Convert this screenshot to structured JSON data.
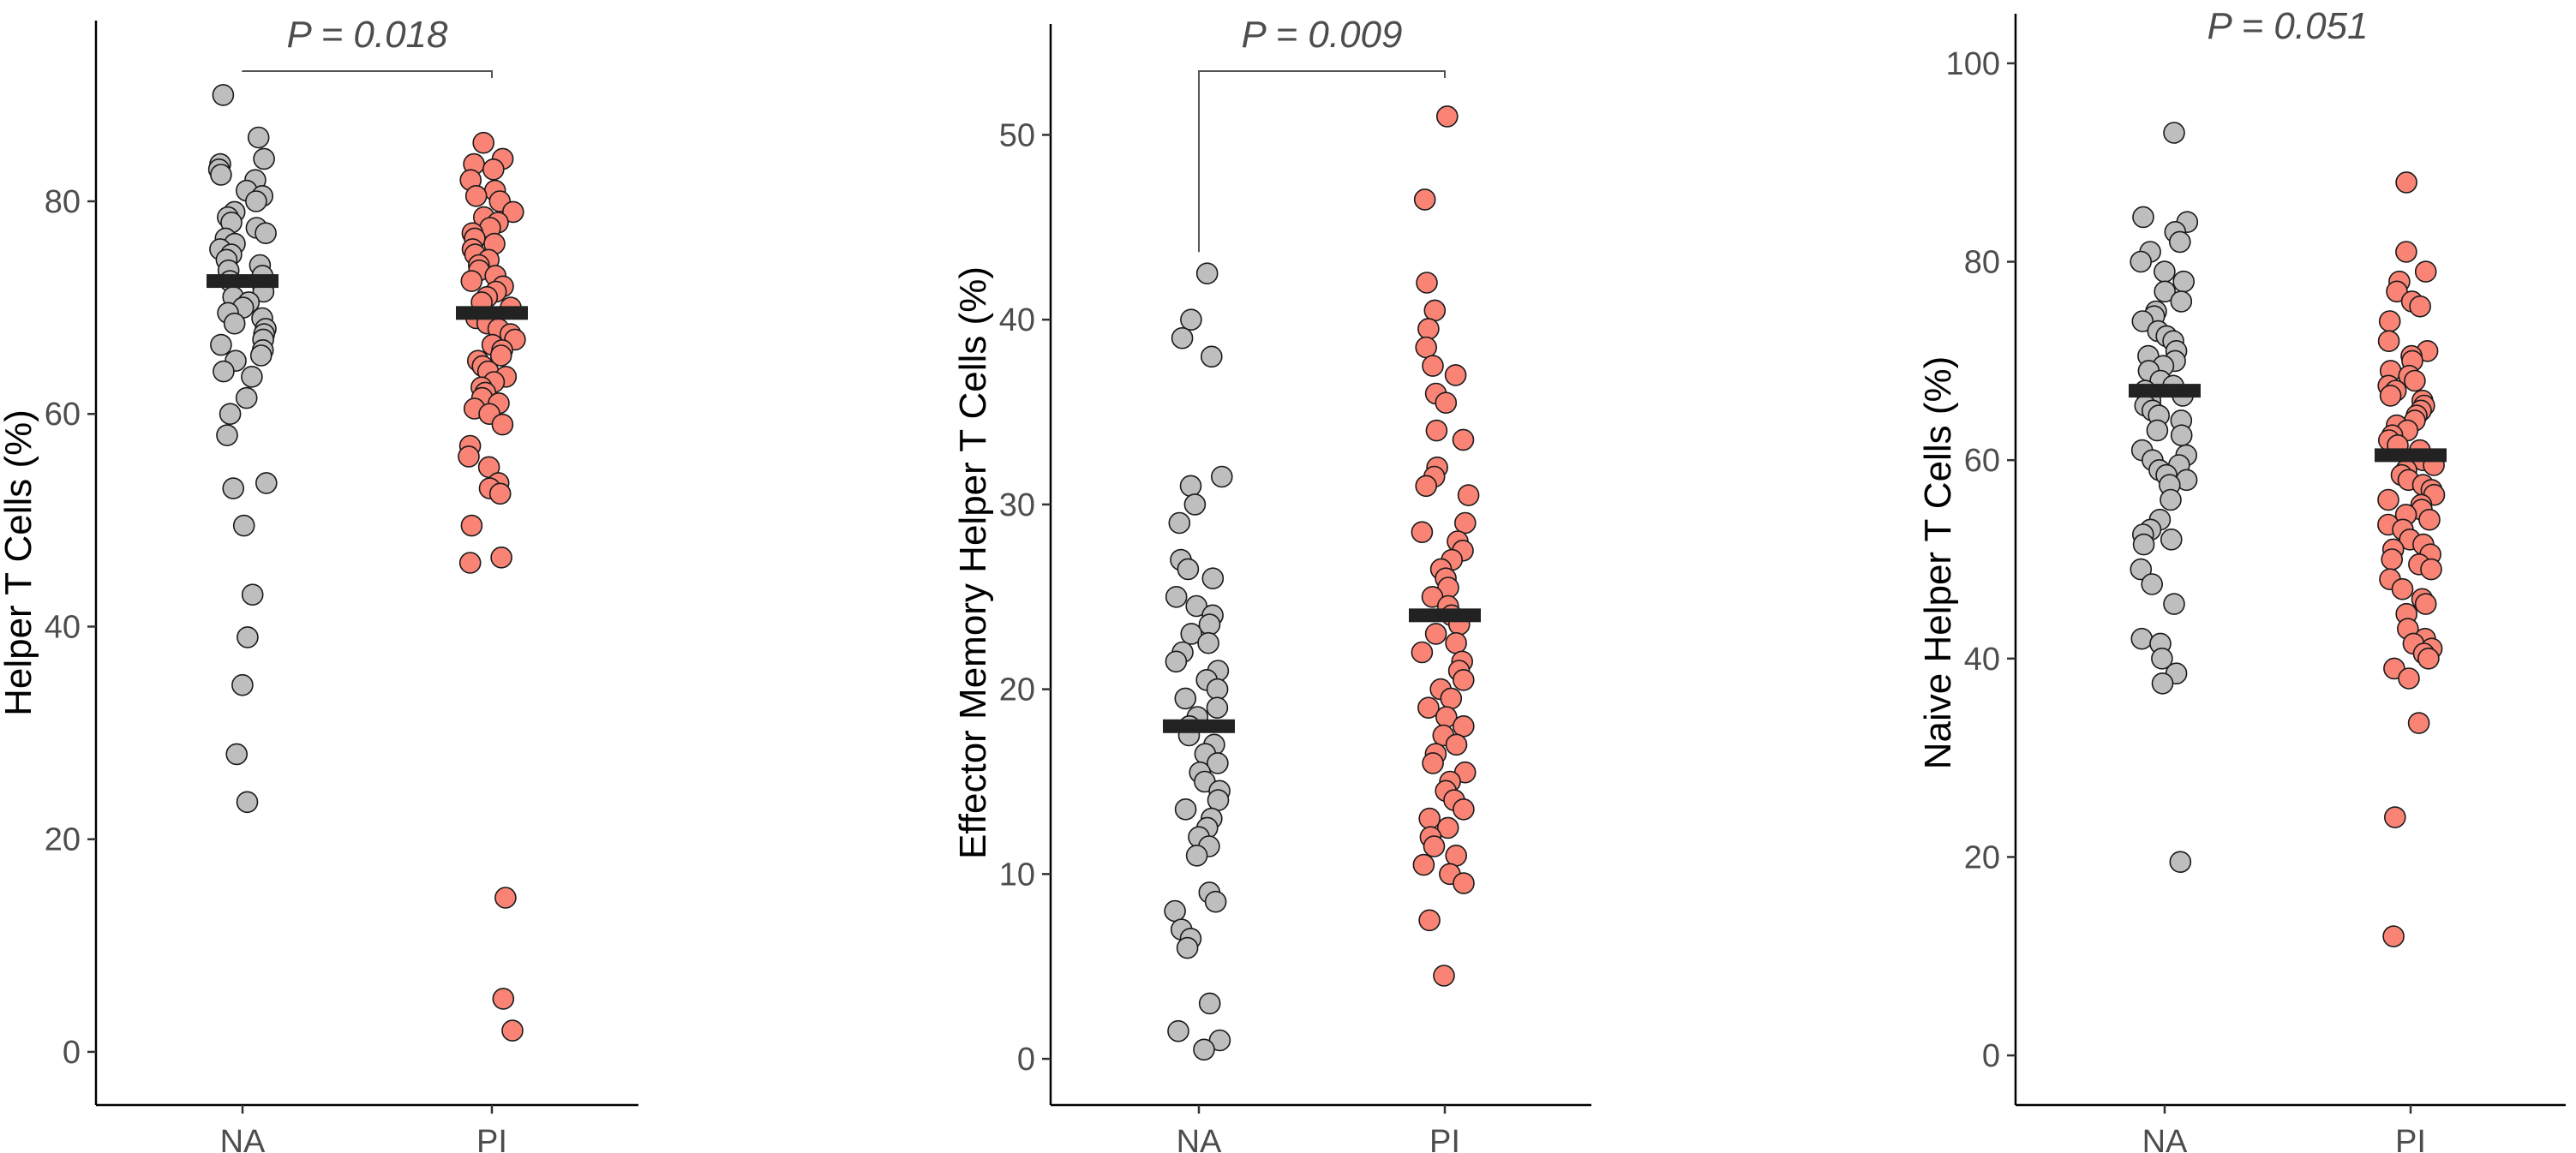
{
  "chart_data": [
    {
      "type": "scatter",
      "ylabel": "Helper T Cells (%)",
      "categories": [
        "NA",
        "PI"
      ],
      "ylim": [
        -5,
        97
      ],
      "yticks": [
        0,
        20,
        40,
        60,
        80
      ],
      "pvalue": "P = 0.018",
      "bracket": true,
      "medians": [
        72.5,
        69.5
      ],
      "series": [
        {
          "category": "NA",
          "color": "#bebebe",
          "values": [
            90.0,
            86.0,
            84.0,
            83.5,
            83.0,
            82.5,
            82.0,
            81.0,
            80.5,
            80.0,
            79.0,
            78.5,
            78.0,
            77.5,
            77.0,
            76.5,
            76.0,
            75.5,
            75.0,
            74.5,
            74.0,
            73.5,
            73.0,
            72.5,
            72.0,
            71.5,
            71.0,
            70.5,
            70.0,
            69.5,
            69.0,
            68.5,
            68.0,
            67.5,
            67.0,
            66.5,
            66.0,
            65.5,
            65.0,
            64.0,
            63.5,
            61.5,
            60.0,
            58.0,
            53.5,
            53.0,
            49.5,
            43.0,
            39.0,
            34.5,
            28.0,
            23.5
          ]
        },
        {
          "category": "PI",
          "color": "#f98475",
          "values": [
            85.5,
            84.0,
            83.5,
            83.0,
            82.0,
            81.0,
            80.5,
            80.0,
            79.0,
            78.5,
            78.0,
            77.5,
            77.0,
            76.5,
            76.0,
            75.5,
            75.0,
            74.5,
            74.0,
            73.5,
            73.0,
            72.5,
            72.0,
            71.5,
            71.0,
            70.5,
            70.0,
            69.0,
            68.5,
            68.0,
            67.5,
            67.0,
            66.5,
            66.0,
            65.5,
            65.0,
            64.5,
            64.0,
            63.5,
            63.0,
            62.5,
            62.0,
            61.5,
            61.0,
            60.5,
            60.0,
            59.0,
            57.0,
            56.0,
            55.0,
            53.5,
            53.0,
            52.5,
            49.5,
            46.5,
            46.0,
            14.5,
            5.0,
            2.0
          ]
        }
      ]
    },
    {
      "type": "scatter",
      "ylabel": "Effector Memory Helper T Cells (%)",
      "categories": [
        "NA",
        "PI"
      ],
      "ylim": [
        -2.5,
        56
      ],
      "yticks": [
        0,
        10,
        20,
        30,
        40,
        50
      ],
      "pvalue": "P = 0.009",
      "bracket": true,
      "medians": [
        18.0,
        24.0
      ],
      "series": [
        {
          "category": "NA",
          "color": "#bebebe",
          "values": [
            42.5,
            40.0,
            39.0,
            38.0,
            31.5,
            31.0,
            30.0,
            29.0,
            27.0,
            26.5,
            26.0,
            25.0,
            24.5,
            24.0,
            23.5,
            23.0,
            22.5,
            22.0,
            21.5,
            21.0,
            20.5,
            20.0,
            19.5,
            19.0,
            18.5,
            18.0,
            17.5,
            17.0,
            16.5,
            16.0,
            15.5,
            15.0,
            14.5,
            14.0,
            13.5,
            13.0,
            12.5,
            12.0,
            11.5,
            11.0,
            9.0,
            8.5,
            8.0,
            7.0,
            6.5,
            6.0,
            3.0,
            1.5,
            1.0,
            0.5
          ]
        },
        {
          "category": "PI",
          "color": "#f98475",
          "values": [
            51.0,
            46.5,
            42.0,
            40.5,
            39.5,
            38.5,
            37.5,
            37.0,
            36.0,
            35.5,
            34.0,
            33.5,
            32.0,
            31.5,
            31.0,
            30.5,
            29.0,
            28.5,
            28.0,
            27.5,
            27.0,
            26.5,
            26.0,
            25.5,
            25.0,
            24.5,
            24.0,
            23.5,
            23.0,
            22.5,
            22.0,
            21.5,
            21.0,
            20.5,
            20.0,
            19.5,
            19.0,
            18.5,
            18.0,
            17.5,
            17.0,
            16.5,
            16.0,
            15.5,
            15.0,
            14.5,
            14.0,
            13.5,
            13.0,
            12.5,
            12.0,
            11.5,
            11.0,
            10.5,
            10.0,
            9.5,
            7.5,
            4.5
          ]
        }
      ]
    },
    {
      "type": "scatter",
      "ylabel": "Naive Helper T Cells (%)",
      "categories": [
        "NA",
        "PI"
      ],
      "ylim": [
        -5,
        105
      ],
      "yticks": [
        0,
        20,
        40,
        60,
        80,
        100
      ],
      "pvalue": "P = 0.051",
      "bracket": false,
      "medians": [
        67.0,
        60.5
      ],
      "series": [
        {
          "category": "NA",
          "color": "#bebebe",
          "values": [
            93.0,
            84.5,
            84.0,
            83.0,
            82.0,
            81.0,
            80.0,
            79.0,
            78.0,
            77.0,
            76.0,
            75.0,
            74.5,
            74.0,
            73.0,
            72.5,
            72.0,
            71.0,
            70.5,
            70.0,
            69.5,
            69.0,
            68.0,
            67.5,
            67.0,
            66.5,
            66.0,
            65.5,
            65.0,
            64.5,
            64.0,
            63.0,
            62.5,
            61.0,
            60.5,
            60.0,
            59.5,
            59.0,
            58.5,
            58.0,
            57.5,
            56.0,
            54.0,
            53.0,
            52.5,
            52.0,
            51.5,
            49.0,
            47.5,
            45.5,
            42.0,
            41.5,
            40.0,
            38.5,
            37.5,
            19.5
          ]
        },
        {
          "category": "PI",
          "color": "#f98475",
          "values": [
            88.0,
            81.0,
            79.0,
            78.0,
            77.0,
            76.0,
            75.5,
            74.0,
            72.0,
            71.0,
            70.5,
            70.0,
            69.0,
            68.5,
            68.0,
            67.5,
            67.0,
            66.5,
            66.0,
            65.5,
            65.0,
            64.5,
            64.0,
            63.5,
            63.0,
            62.5,
            62.0,
            61.5,
            61.0,
            60.0,
            59.5,
            59.0,
            58.5,
            58.0,
            57.5,
            57.0,
            56.5,
            56.0,
            55.5,
            55.0,
            54.5,
            54.0,
            53.5,
            53.0,
            52.0,
            51.5,
            51.0,
            50.5,
            50.0,
            49.5,
            49.0,
            48.0,
            47.0,
            46.0,
            45.5,
            44.5,
            43.0,
            42.0,
            41.5,
            41.0,
            40.5,
            40.0,
            39.0,
            38.0,
            33.5,
            24.0,
            12.0
          ]
        }
      ]
    }
  ]
}
